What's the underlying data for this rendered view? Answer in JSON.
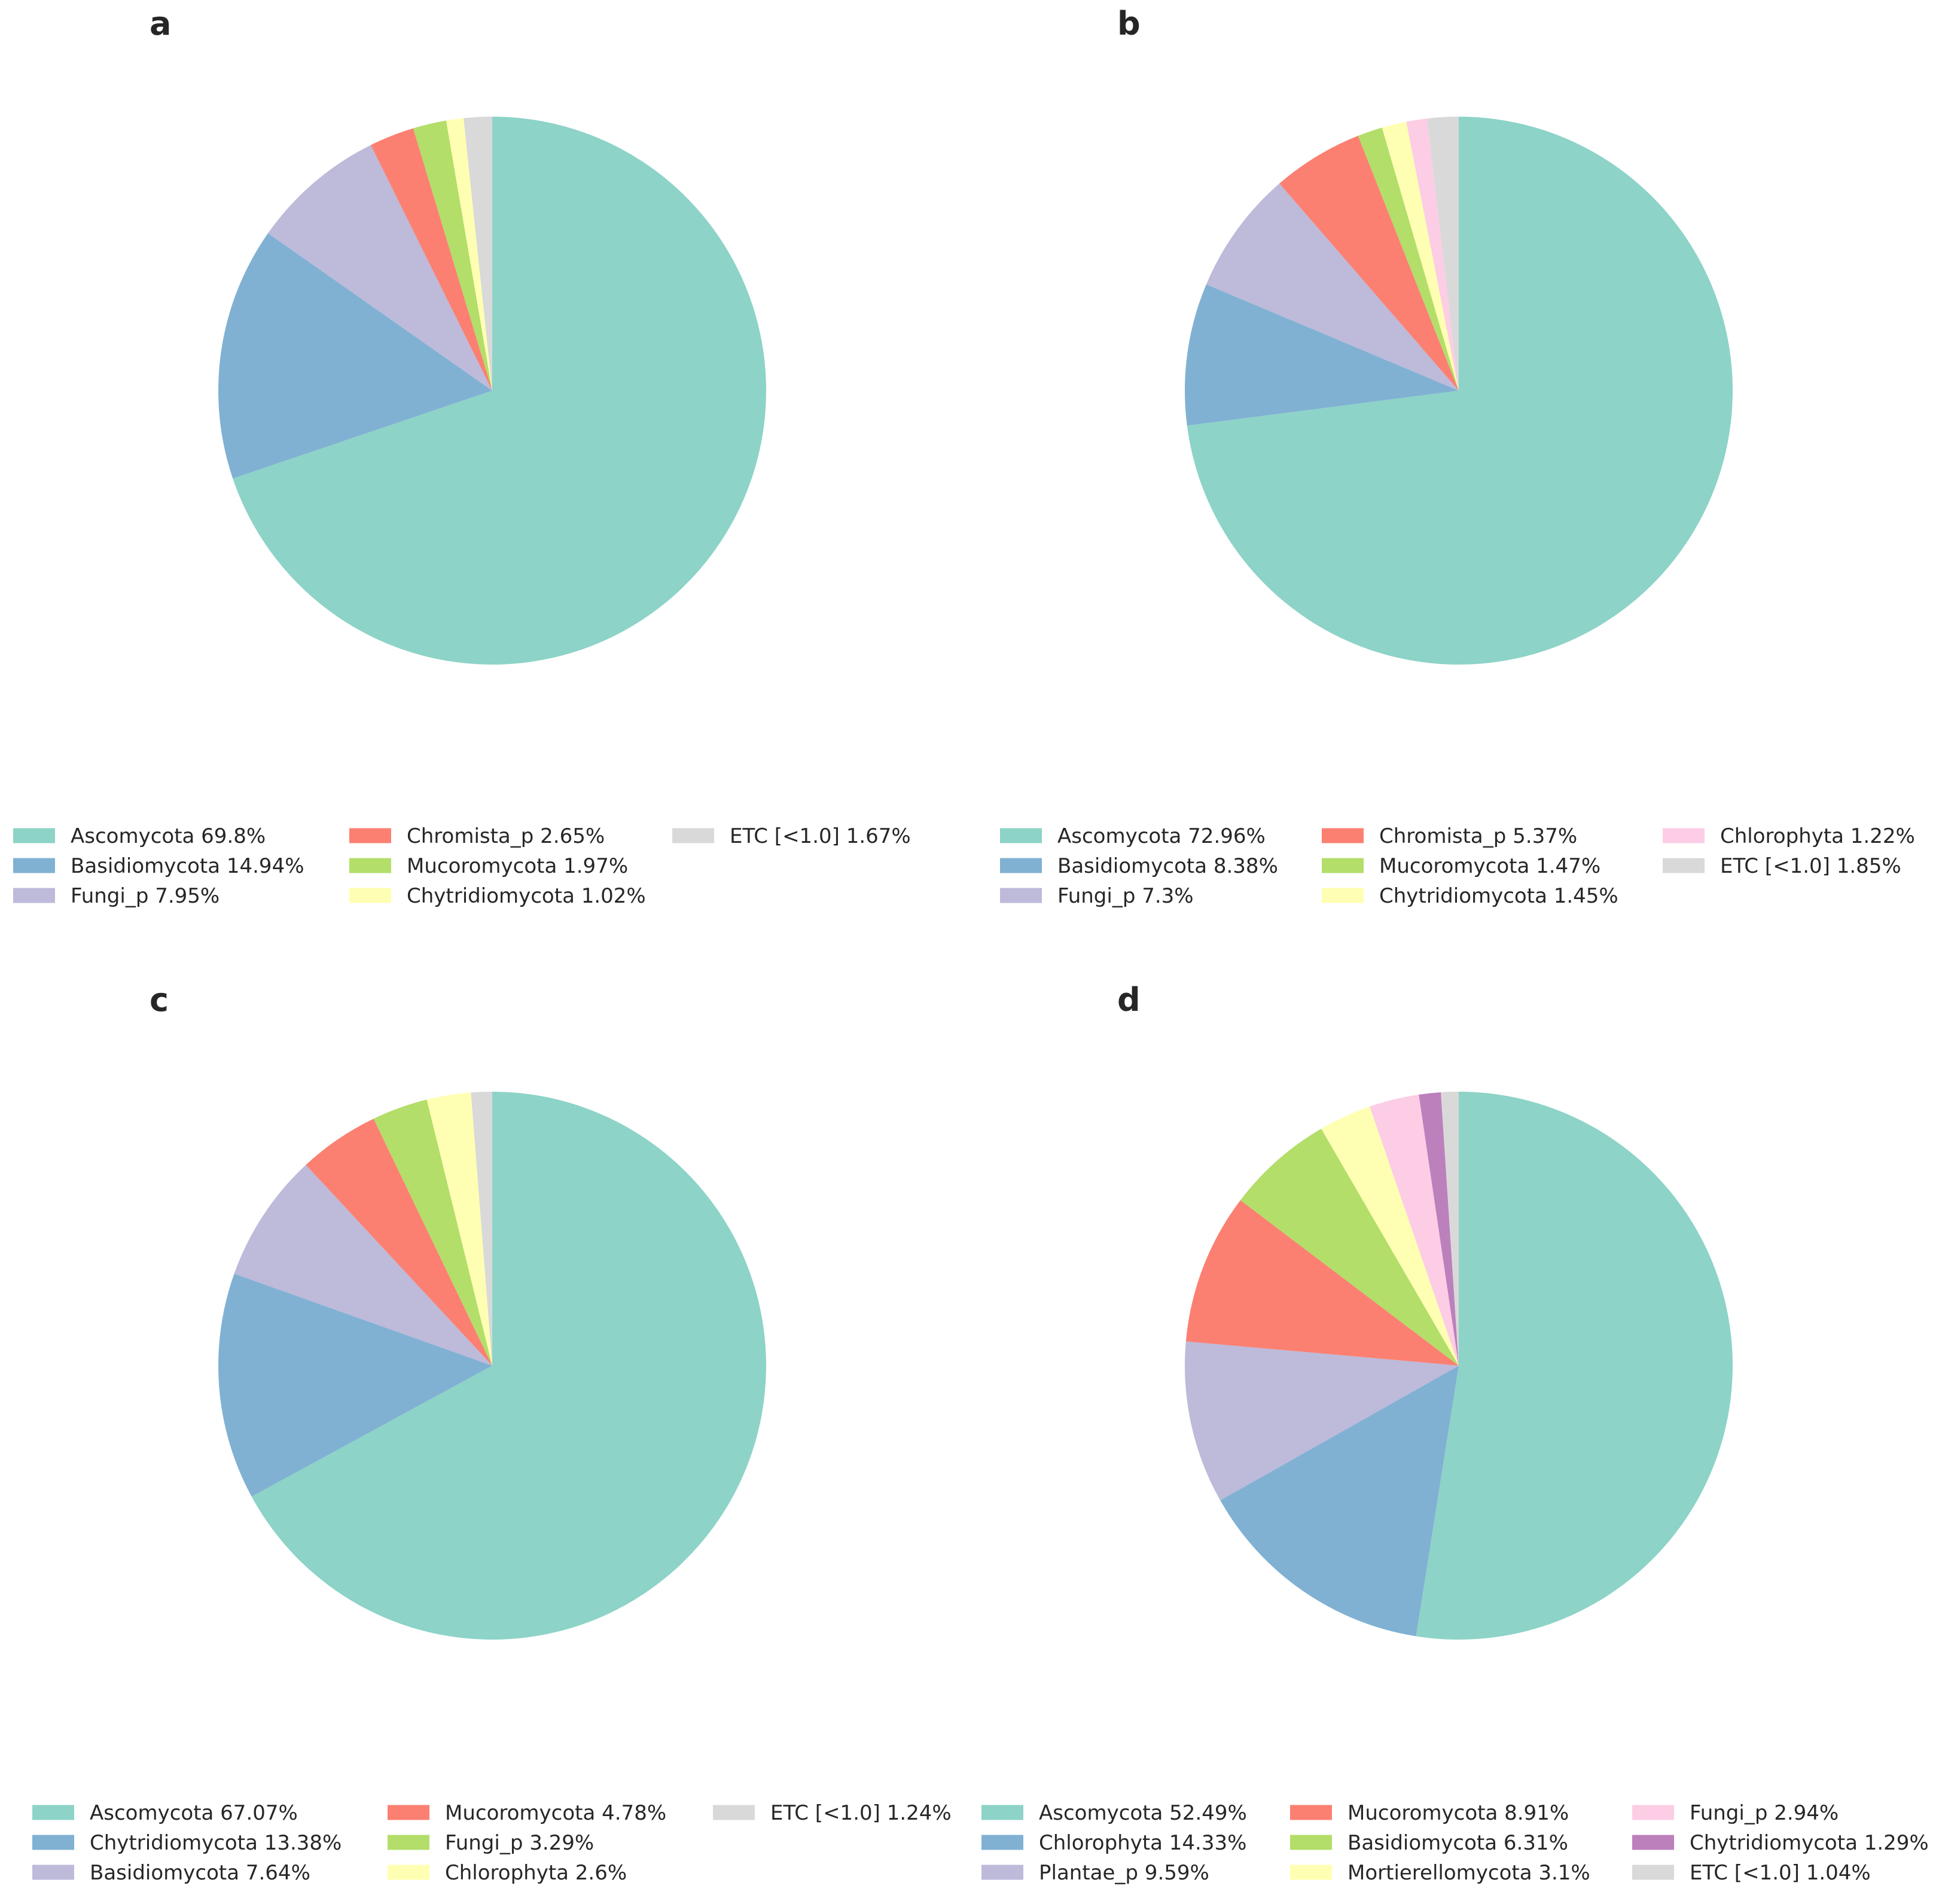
{
  "chart_data": [
    {
      "type": "pie",
      "panel": "a",
      "start_angle_deg": 90,
      "direction": "clockwise",
      "slices": [
        {
          "label": "Ascomycota",
          "value": 69.8,
          "legend": "Ascomycota 69.8%",
          "color": "#8DD3C7"
        },
        {
          "label": "Basidiomycota",
          "value": 14.94,
          "legend": "Basidiomycota 14.94%",
          "color": "#80B1D3"
        },
        {
          "label": "Fungi_p",
          "value": 7.95,
          "legend": "Fungi_p 7.95%",
          "color": "#BEBADA"
        },
        {
          "label": "Chromista_p",
          "value": 2.65,
          "legend": "Chromista_p 2.65%",
          "color": "#FB8072"
        },
        {
          "label": "Mucoromycota",
          "value": 1.97,
          "legend": "Mucoromycota 1.97%",
          "color": "#B3DE69"
        },
        {
          "label": "Chytridiomycota",
          "value": 1.02,
          "legend": "Chytridiomycota 1.02%",
          "color": "#FFFFB3"
        },
        {
          "label": "ETC [<1.0]",
          "value": 1.67,
          "legend": "ETC [<1.0] 1.67%",
          "color": "#D9D9D9"
        }
      ]
    },
    {
      "type": "pie",
      "panel": "b",
      "start_angle_deg": 90,
      "direction": "clockwise",
      "slices": [
        {
          "label": "Ascomycota",
          "value": 72.96,
          "legend": "Ascomycota 72.96%",
          "color": "#8DD3C7"
        },
        {
          "label": "Basidiomycota",
          "value": 8.38,
          "legend": "Basidiomycota 8.38%",
          "color": "#80B1D3"
        },
        {
          "label": "Fungi_p",
          "value": 7.3,
          "legend": "Fungi_p 7.3%",
          "color": "#BEBADA"
        },
        {
          "label": "Chromista_p",
          "value": 5.37,
          "legend": "Chromista_p 5.37%",
          "color": "#FB8072"
        },
        {
          "label": "Mucoromycota",
          "value": 1.47,
          "legend": "Mucoromycota 1.47%",
          "color": "#B3DE69"
        },
        {
          "label": "Chytridiomycota",
          "value": 1.45,
          "legend": "Chytridiomycota 1.45%",
          "color": "#FFFFB3"
        },
        {
          "label": "Chlorophyta",
          "value": 1.22,
          "legend": "Chlorophyta 1.22%",
          "color": "#FCCDE5"
        },
        {
          "label": "ETC [<1.0]",
          "value": 1.85,
          "legend": "ETC [<1.0] 1.85%",
          "color": "#D9D9D9"
        }
      ]
    },
    {
      "type": "pie",
      "panel": "c",
      "start_angle_deg": 90,
      "direction": "clockwise",
      "slices": [
        {
          "label": "Ascomycota",
          "value": 67.07,
          "legend": "Ascomycota 67.07%",
          "color": "#8DD3C7"
        },
        {
          "label": "Chytridiomycota",
          "value": 13.38,
          "legend": "Chytridiomycota 13.38%",
          "color": "#80B1D3"
        },
        {
          "label": "Basidiomycota",
          "value": 7.64,
          "legend": "Basidiomycota 7.64%",
          "color": "#BEBADA"
        },
        {
          "label": "Mucoromycota",
          "value": 4.78,
          "legend": "Mucoromycota 4.78%",
          "color": "#FB8072"
        },
        {
          "label": "Fungi_p",
          "value": 3.29,
          "legend": "Fungi_p 3.29%",
          "color": "#B3DE69"
        },
        {
          "label": "Chlorophyta",
          "value": 2.6,
          "legend": "Chlorophyta 2.6%",
          "color": "#FFFFB3"
        },
        {
          "label": "ETC [<1.0]",
          "value": 1.24,
          "legend": "ETC [<1.0] 1.24%",
          "color": "#D9D9D9"
        }
      ]
    },
    {
      "type": "pie",
      "panel": "d",
      "start_angle_deg": 90,
      "direction": "clockwise",
      "slices": [
        {
          "label": "Ascomycota",
          "value": 52.49,
          "legend": "Ascomycota 52.49%",
          "color": "#8DD3C7"
        },
        {
          "label": "Chlorophyta",
          "value": 14.33,
          "legend": "Chlorophyta 14.33%",
          "color": "#80B1D3"
        },
        {
          "label": "Plantae_p",
          "value": 9.59,
          "legend": "Plantae_p 9.59%",
          "color": "#BEBADA"
        },
        {
          "label": "Mucoromycota",
          "value": 8.91,
          "legend": "Mucoromycota 8.91%",
          "color": "#FB8072"
        },
        {
          "label": "Basidiomycota",
          "value": 6.31,
          "legend": "Basidiomycota 6.31%",
          "color": "#B3DE69"
        },
        {
          "label": "Mortierellomycota",
          "value": 3.1,
          "legend": "Mortierellomycota 3.1%",
          "color": "#FFFFB3"
        },
        {
          "label": "Fungi_p",
          "value": 2.94,
          "legend": "Fungi_p 2.94%",
          "color": "#FCCDE5"
        },
        {
          "label": "Chytridiomycota",
          "value": 1.29,
          "legend": "Chytridiomycota 1.29%",
          "color": "#BC80BD"
        },
        {
          "label": "ETC [<1.0]",
          "value": 1.04,
          "legend": "ETC [<1.0] 1.04%",
          "color": "#D9D9D9"
        }
      ]
    }
  ]
}
